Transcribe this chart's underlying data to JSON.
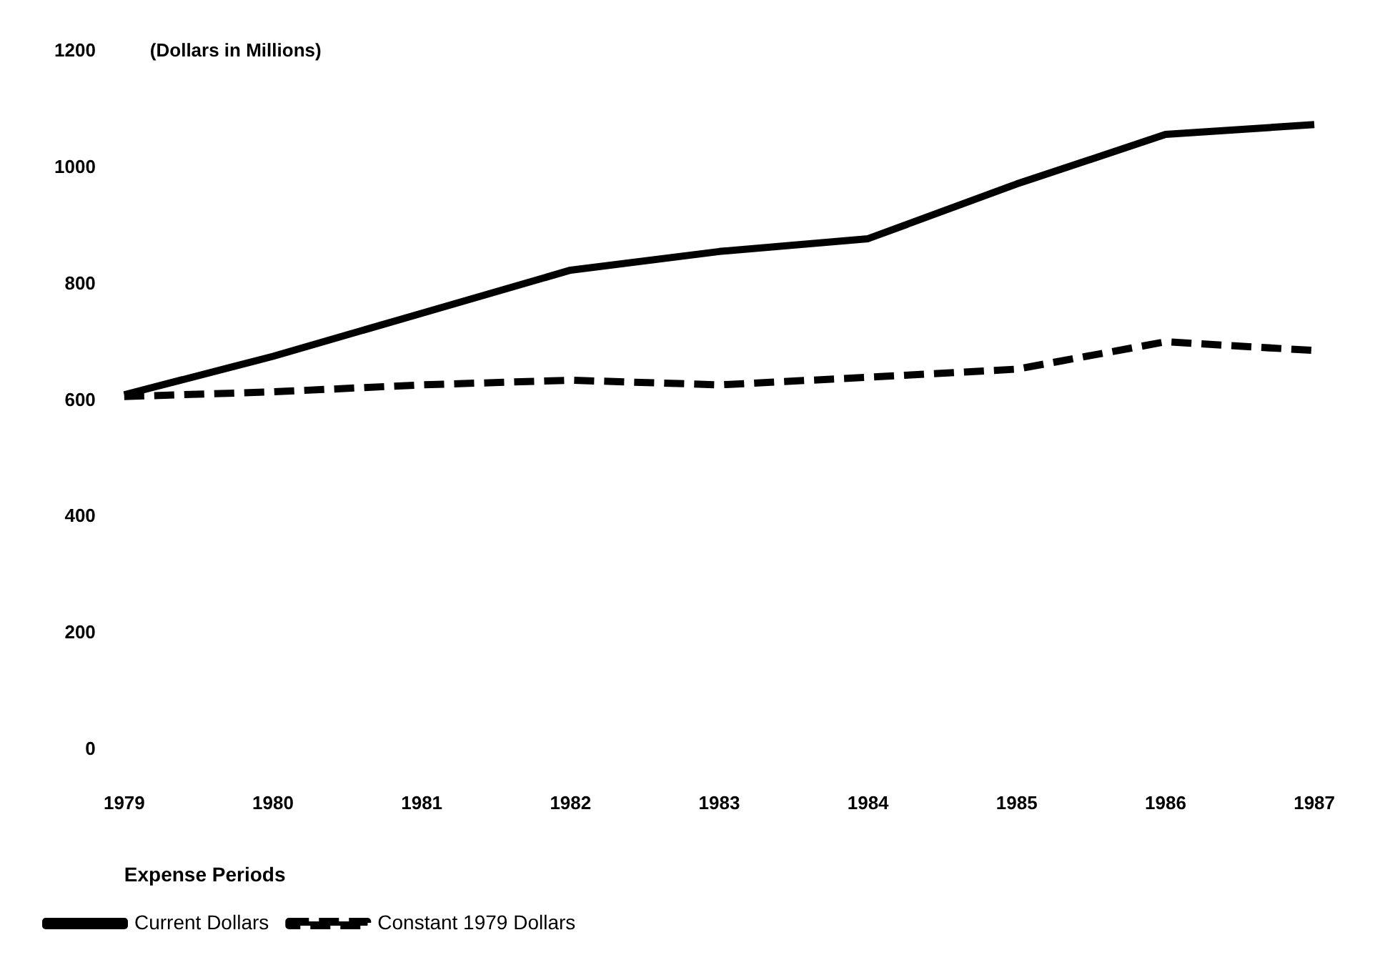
{
  "chart_data": {
    "type": "line",
    "ylabel": "(Dollars in Millions)",
    "xlabel": "Expense Periods",
    "categories": [
      "1979",
      "1980",
      "1981",
      "1982",
      "1983",
      "1984",
      "1985",
      "1986",
      "1987"
    ],
    "series": [
      {
        "name": "Current Dollars",
        "color": "#000000",
        "line_style": "solid",
        "values": [
          610,
          676,
          750,
          824,
          856,
          878,
          972,
          1057,
          1074
        ]
      },
      {
        "name": "Constant 1979 Dollars",
        "color": "#000000",
        "line_style": "dashed",
        "values": [
          607,
          615,
          627,
          635,
          627,
          640,
          654,
          701,
          686
        ]
      }
    ],
    "ylim": [
      0,
      1200
    ],
    "yticks": [
      0,
      200,
      400,
      600,
      800,
      1000,
      1200
    ],
    "grid": false,
    "legend": "bottom left",
    "marker": "none"
  }
}
